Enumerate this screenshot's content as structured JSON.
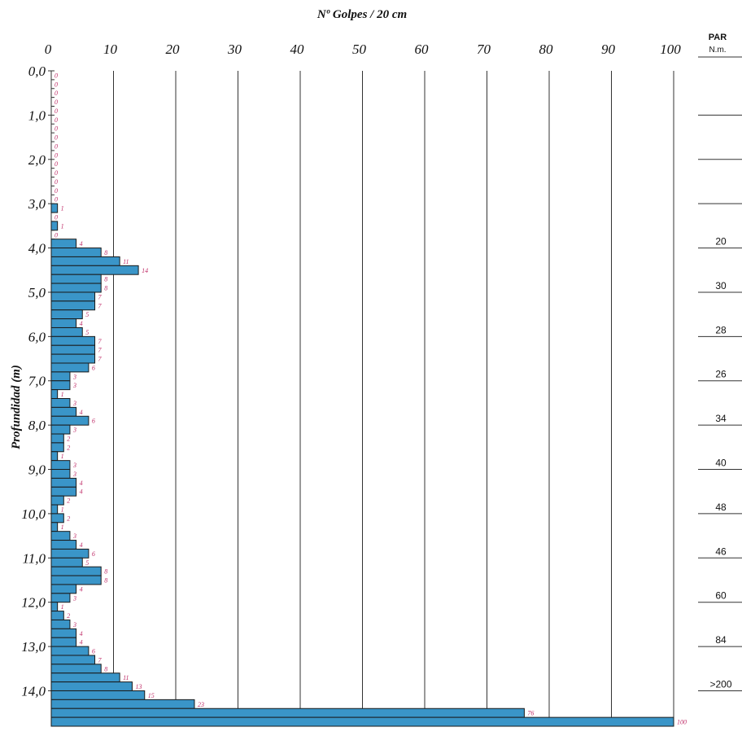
{
  "chart_data": {
    "type": "bar",
    "orientation": "horizontal",
    "title": "Nº Golpes / 20 cm",
    "xlabel": "Nº Golpes / 20 cm",
    "ylabel": "Profundidad (m)",
    "xlim": [
      0,
      100
    ],
    "ylim": [
      0,
      14.8
    ],
    "x_ticks": [
      "0",
      "10",
      "20",
      "30",
      "40",
      "50",
      "60",
      "70",
      "80",
      "90",
      "100"
    ],
    "y_ticks": [
      "0,0",
      "1,0",
      "2,0",
      "3,0",
      "4,0",
      "5,0",
      "6,0",
      "7,0",
      "8,0",
      "9,0",
      "10,0",
      "11,0",
      "12,0",
      "13,0",
      "14,0"
    ],
    "interval_m": 0.2,
    "grid": true,
    "bar_color": "#3a95c8",
    "value_label_color": "#c0306a",
    "values": [
      0,
      0,
      0,
      0,
      0,
      0,
      0,
      0,
      0,
      0,
      0,
      0,
      0,
      0,
      0,
      1,
      0,
      1,
      0,
      4,
      8,
      11,
      14,
      8,
      8,
      7,
      7,
      5,
      4,
      5,
      7,
      7,
      7,
      6,
      3,
      3,
      1,
      3,
      4,
      6,
      3,
      2,
      2,
      1,
      3,
      3,
      4,
      4,
      2,
      1,
      2,
      1,
      3,
      4,
      6,
      5,
      8,
      8,
      4,
      3,
      1,
      2,
      3,
      4,
      4,
      6,
      7,
      8,
      11,
      13,
      15,
      23,
      76,
      100
    ],
    "value_labels": [
      "0",
      "0",
      "0",
      "0",
      "0",
      "0",
      "0",
      "0",
      "0",
      "0",
      "0",
      "0",
      "0",
      "0",
      "0",
      "1",
      "0",
      "1",
      "0",
      "4",
      "8",
      "11",
      "14",
      "8",
      "8",
      "7",
      "7",
      "5",
      "4",
      "5",
      "7",
      "7",
      "7",
      "6",
      "3",
      "3",
      "1",
      "3",
      "4",
      "6",
      "3",
      "2",
      "2",
      "1",
      "3",
      "3",
      "4",
      "4",
      "2",
      "1",
      "2",
      "1",
      "3",
      "4",
      "6",
      "5",
      "8",
      "8",
      "4",
      "3",
      "1",
      "2",
      "3",
      "4",
      "4",
      "6",
      "7",
      "8",
      "11",
      "13",
      "15",
      "23",
      "76",
      "100"
    ]
  },
  "side_panel": {
    "header": "PAR",
    "subheader": "N.m.",
    "entries": [
      {
        "depth": 1.0,
        "value": ""
      },
      {
        "depth": 2.0,
        "value": ""
      },
      {
        "depth": 3.0,
        "value": ""
      },
      {
        "depth": 4.0,
        "value": "20"
      },
      {
        "depth": 5.0,
        "value": "30"
      },
      {
        "depth": 6.0,
        "value": "28"
      },
      {
        "depth": 7.0,
        "value": "26"
      },
      {
        "depth": 8.0,
        "value": "34"
      },
      {
        "depth": 9.0,
        "value": "40"
      },
      {
        "depth": 10.0,
        "value": "48"
      },
      {
        "depth": 11.0,
        "value": "46"
      },
      {
        "depth": 12.0,
        "value": "60"
      },
      {
        "depth": 13.0,
        "value": "84"
      },
      {
        "depth": 14.0,
        "value": ">200"
      }
    ]
  }
}
